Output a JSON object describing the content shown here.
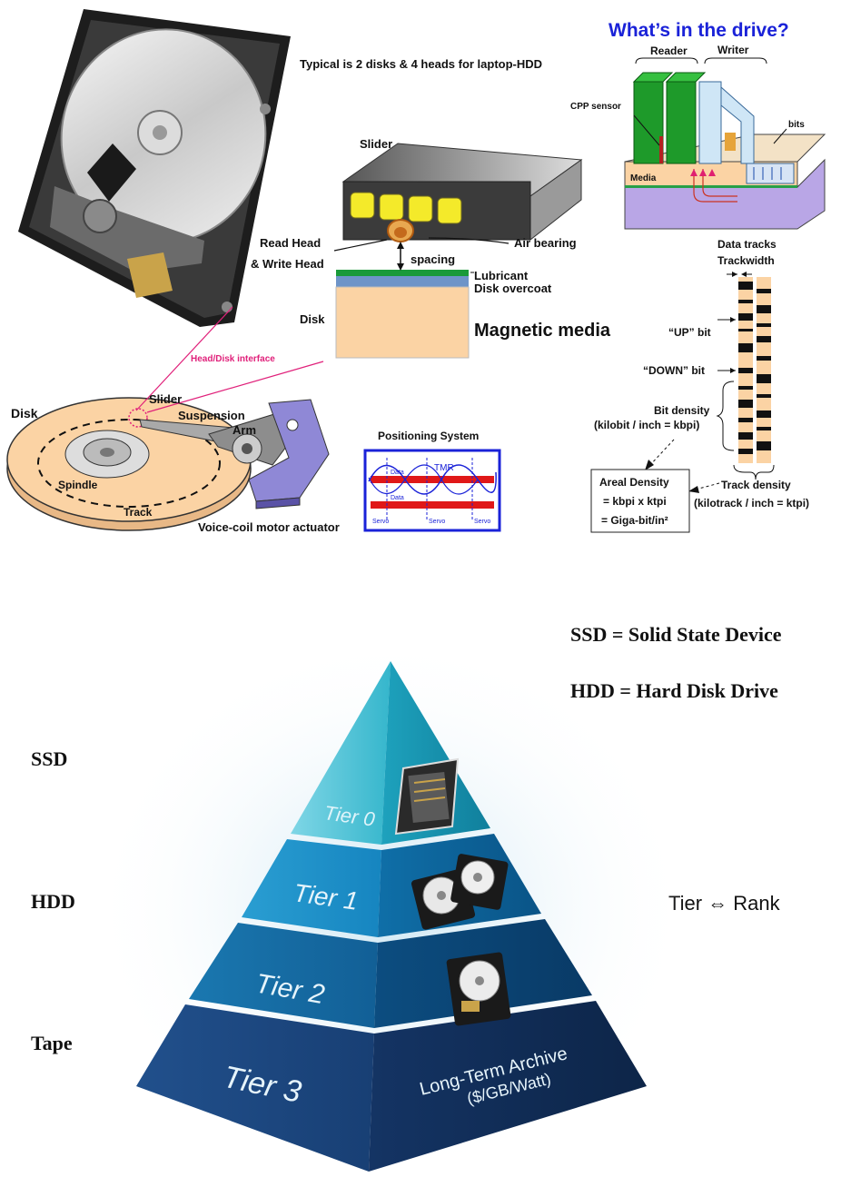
{
  "hdd": {
    "header_note": "Typical is 2 disks & 4 heads for laptop-HDD",
    "slider_label": "Slider",
    "read_head": "Read Head",
    "write_head": "& Write Head",
    "air_bearing": "Air bearing",
    "spacing": "spacing",
    "lubricant": "Lubricant",
    "disk_overcoat": "Disk overcoat",
    "disk_label": "Disk",
    "magnetic_media": "Magnetic media",
    "interface": "Head/Disk interface",
    "lower_disk": "Disk",
    "lower_slider": "Slider",
    "suspension": "Suspension",
    "arm": "Arm",
    "spindle": "Spindle",
    "track": "Track",
    "vcm": "Voice-coil motor actuator",
    "positioning_title": "Positioning System",
    "pos_data": "Data",
    "pos_tmr": "TMR",
    "pos_servo": "Servo"
  },
  "drive": {
    "title": "What’s in the drive?",
    "reader": "Reader",
    "writer": "Writer",
    "cpp": "CPP sensor",
    "bits": "bits",
    "media": "Media"
  },
  "tracks": {
    "data_tracks": "Data tracks",
    "trackwidth": "Trackwidth",
    "up_bit": "“UP” bit",
    "down_bit": "“DOWN” bit",
    "bit_density": "Bit density",
    "bit_density_unit": "(kilobit / inch = kbpi)",
    "areal_1": "Areal Density",
    "areal_2": "= kbpi x ktpi",
    "areal_3": "= Giga-bit/in²",
    "track_density": "Track density",
    "track_density_unit": "(kilotrack / inch = ktpi)"
  },
  "pyramid": {
    "ssd_def": "SSD = Solid State Device",
    "hdd_def": "HDD = Hard Disk Drive",
    "left_ssd": "SSD",
    "left_hdd": "HDD",
    "left_tape": "Tape",
    "tier_rank": "Tier ⇔ Rank",
    "tier0": "Tier 0",
    "tier1": "Tier 1",
    "tier2": "Tier 2",
    "tier3": "Tier 3",
    "archive_1": "Long-Term Archive",
    "archive_2": "($/GB/Watt)"
  },
  "colors": {
    "title_blue": "#1a22d8",
    "pink": "#e0207a",
    "media_peach": "#fbd3a4",
    "lube_green": "#1a9a3a",
    "overcoat_blue": "#6e94c8"
  }
}
